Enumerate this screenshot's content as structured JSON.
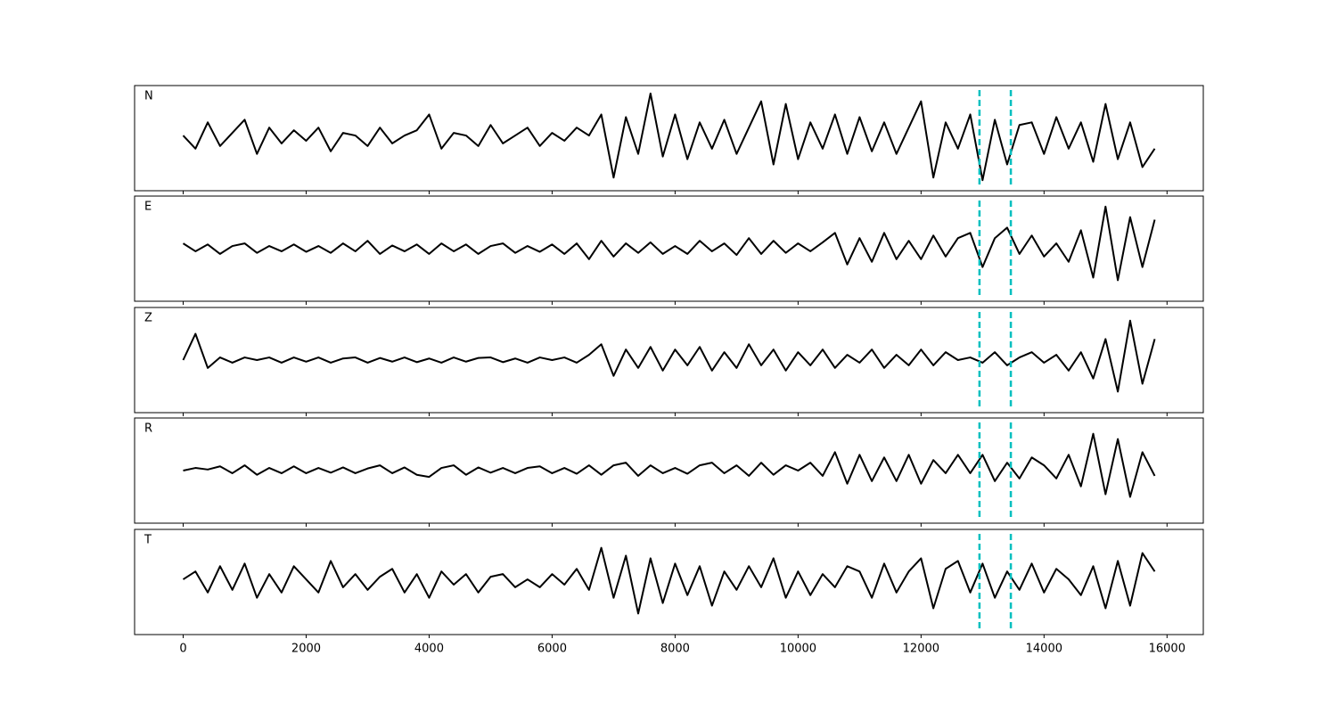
{
  "chart_data": {
    "type": "line",
    "layout": "stacked",
    "x": [
      0,
      200,
      400,
      600,
      800,
      1000,
      1200,
      1400,
      1600,
      1800,
      2000,
      2200,
      2400,
      2600,
      2800,
      3000,
      3200,
      3400,
      3600,
      3800,
      4000,
      4200,
      4400,
      4600,
      4800,
      5000,
      5200,
      5400,
      5600,
      5800,
      6000,
      6200,
      6400,
      6600,
      6800,
      7000,
      7200,
      7400,
      7600,
      7800,
      8000,
      8200,
      8400,
      8600,
      8800,
      9000,
      9200,
      9400,
      9600,
      9800,
      10000,
      10200,
      10400,
      10600,
      10800,
      11000,
      11200,
      11400,
      11600,
      11800,
      12000,
      12200,
      12400,
      12600,
      12800,
      13000,
      13200,
      13400,
      13600,
      13800,
      14000,
      14200,
      14400,
      14600,
      14800,
      15000,
      15200,
      15400,
      15600,
      15800
    ],
    "xlim": [
      -790,
      16590
    ],
    "xticks": [
      0,
      2000,
      4000,
      6000,
      8000,
      10000,
      12000,
      14000,
      16000
    ],
    "ylim": [
      -1,
      1
    ],
    "grid": false,
    "vlines": [
      12950,
      13460
    ],
    "vline_color": "#00bfbf",
    "series": [
      {
        "name": "N",
        "color": "#000000",
        "values": [
          0.05,
          -0.2,
          0.3,
          -0.15,
          0.1,
          0.35,
          -0.3,
          0.2,
          -0.1,
          0.15,
          -0.05,
          0.2,
          -0.25,
          0.1,
          0.05,
          -0.15,
          0.2,
          -0.1,
          0.05,
          0.15,
          0.45,
          -0.2,
          0.1,
          0.05,
          -0.15,
          0.25,
          -0.1,
          0.05,
          0.2,
          -0.15,
          0.1,
          -0.05,
          0.2,
          0.05,
          0.45,
          -0.75,
          0.4,
          -0.3,
          0.85,
          -0.35,
          0.45,
          -0.4,
          0.3,
          -0.2,
          0.35,
          -0.3,
          0.2,
          0.7,
          -0.5,
          0.65,
          -0.4,
          0.3,
          -0.2,
          0.45,
          -0.3,
          0.4,
          -0.25,
          0.3,
          -0.3,
          0.2,
          0.7,
          -0.75,
          0.3,
          -0.2,
          0.45,
          -0.8,
          0.35,
          -0.5,
          0.25,
          0.3,
          -0.3,
          0.4,
          -0.2,
          0.3,
          -0.45,
          0.65,
          -0.4,
          0.3,
          -0.55,
          -0.2
        ]
      },
      {
        "name": "E",
        "color": "#000000",
        "values": [
          0.1,
          -0.05,
          0.08,
          -0.1,
          0.05,
          0.1,
          -0.08,
          0.05,
          -0.05,
          0.08,
          -0.06,
          0.05,
          -0.08,
          0.1,
          -0.05,
          0.15,
          -0.1,
          0.06,
          -0.05,
          0.08,
          -0.1,
          0.1,
          -0.05,
          0.08,
          -0.1,
          0.05,
          0.1,
          -0.08,
          0.05,
          -0.06,
          0.08,
          -0.1,
          0.1,
          -0.2,
          0.15,
          -0.15,
          0.1,
          -0.08,
          0.12,
          -0.1,
          0.05,
          -0.1,
          0.15,
          -0.05,
          0.1,
          -0.12,
          0.2,
          -0.1,
          0.15,
          -0.08,
          0.1,
          -0.05,
          0.12,
          0.3,
          -0.3,
          0.2,
          -0.25,
          0.3,
          -0.2,
          0.15,
          -0.2,
          0.25,
          -0.15,
          0.2,
          0.3,
          -0.35,
          0.2,
          0.4,
          -0.1,
          0.25,
          -0.15,
          0.1,
          -0.25,
          0.35,
          -0.55,
          0.8,
          -0.6,
          0.6,
          -0.35,
          0.55
        ]
      },
      {
        "name": "Z",
        "color": "#000000",
        "values": [
          0.0,
          0.5,
          -0.15,
          0.05,
          -0.05,
          0.05,
          0.0,
          0.05,
          -0.05,
          0.05,
          -0.03,
          0.05,
          -0.05,
          0.03,
          0.05,
          -0.05,
          0.04,
          -0.03,
          0.05,
          -0.04,
          0.03,
          -0.05,
          0.05,
          -0.03,
          0.04,
          0.05,
          -0.04,
          0.03,
          -0.05,
          0.05,
          0.0,
          0.05,
          -0.05,
          0.1,
          0.3,
          -0.3,
          0.2,
          -0.15,
          0.25,
          -0.2,
          0.2,
          -0.1,
          0.25,
          -0.2,
          0.15,
          -0.15,
          0.3,
          -0.1,
          0.2,
          -0.2,
          0.15,
          -0.1,
          0.2,
          -0.15,
          0.1,
          -0.05,
          0.2,
          -0.15,
          0.1,
          -0.1,
          0.2,
          -0.1,
          0.15,
          0.0,
          0.05,
          -0.05,
          0.15,
          -0.1,
          0.05,
          0.15,
          -0.05,
          0.1,
          -0.2,
          0.15,
          -0.35,
          0.4,
          -0.6,
          0.75,
          -0.45,
          0.4
        ]
      },
      {
        "name": "R",
        "color": "#000000",
        "values": [
          0.0,
          0.05,
          0.02,
          0.08,
          -0.05,
          0.1,
          -0.08,
          0.05,
          -0.05,
          0.08,
          -0.05,
          0.05,
          -0.04,
          0.06,
          -0.05,
          0.04,
          0.1,
          -0.05,
          0.06,
          -0.08,
          -0.12,
          0.05,
          0.1,
          -0.08,
          0.06,
          -0.04,
          0.05,
          -0.05,
          0.05,
          0.08,
          -0.05,
          0.05,
          -0.06,
          0.1,
          -0.08,
          0.1,
          0.15,
          -0.1,
          0.1,
          -0.05,
          0.05,
          -0.06,
          0.1,
          0.15,
          -0.05,
          0.1,
          -0.1,
          0.15,
          -0.08,
          0.1,
          0.0,
          0.15,
          -0.1,
          0.35,
          -0.25,
          0.3,
          -0.2,
          0.25,
          -0.2,
          0.3,
          -0.25,
          0.2,
          -0.05,
          0.3,
          -0.05,
          0.3,
          -0.2,
          0.15,
          -0.15,
          0.25,
          0.1,
          -0.15,
          0.3,
          -0.3,
          0.7,
          -0.45,
          0.6,
          -0.5,
          0.35,
          -0.1
        ]
      },
      {
        "name": "T",
        "color": "#000000",
        "values": [
          0.05,
          0.2,
          -0.2,
          0.3,
          -0.15,
          0.35,
          -0.3,
          0.15,
          -0.2,
          0.3,
          0.05,
          -0.2,
          0.4,
          -0.1,
          0.15,
          -0.15,
          0.1,
          0.25,
          -0.2,
          0.15,
          -0.3,
          0.2,
          -0.05,
          0.15,
          -0.2,
          0.1,
          0.15,
          -0.1,
          0.05,
          -0.1,
          0.15,
          -0.05,
          0.25,
          -0.15,
          0.65,
          -0.3,
          0.5,
          -0.6,
          0.45,
          -0.4,
          0.35,
          -0.25,
          0.3,
          -0.45,
          0.2,
          -0.15,
          0.3,
          -0.1,
          0.45,
          -0.3,
          0.2,
          -0.25,
          0.15,
          -0.1,
          0.3,
          0.2,
          -0.3,
          0.35,
          -0.2,
          0.2,
          0.45,
          -0.5,
          0.25,
          0.4,
          -0.2,
          0.35,
          -0.3,
          0.2,
          -0.15,
          0.35,
          -0.2,
          0.25,
          0.05,
          -0.25,
          0.3,
          -0.5,
          0.4,
          -0.45,
          0.55,
          0.2
        ]
      }
    ]
  }
}
